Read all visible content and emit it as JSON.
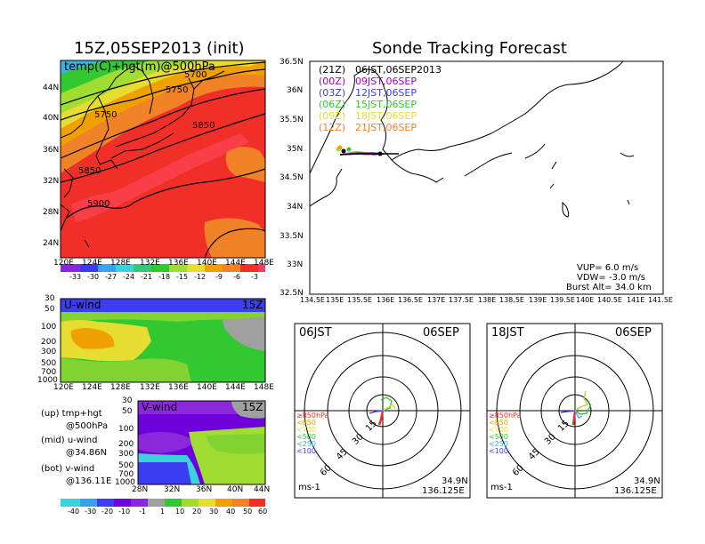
{
  "page": {
    "left_title": "15Z,05SEP2013 (init)",
    "right_title": "Sonde Tracking Forecast"
  },
  "colors": {
    "red": "#f03028",
    "orange": "#f08228",
    "yellow_orange": "#f0a000",
    "yellow": "#e6dc32",
    "yellow_green": "#a0dc32",
    "green": "#32c832",
    "lime": "#82d232",
    "magenta": "#a000c8",
    "purple": "#6e00dc",
    "blue": "#3c3cf0",
    "grey": "#a0a0a0"
  },
  "panels": {
    "map500": {
      "label": "temp(C)+hgt(m)@500hPa",
      "lat_ticks": [
        "44N",
        "40N",
        "36N",
        "32N",
        "28N",
        "24N"
      ],
      "lon_ticks": [
        "120E",
        "124E",
        "128E",
        "132E",
        "136E",
        "140E",
        "144E",
        "148E"
      ],
      "contour_labels": [
        "5700",
        "5750",
        "5750",
        "5850",
        "5850",
        "5900"
      ],
      "colorbar_labels": [
        "-33",
        "-30",
        "-27",
        "-24",
        "-21",
        "-18",
        "-15",
        "-12",
        "-9",
        "-6",
        "-3"
      ]
    },
    "uwind": {
      "label": "U-wind",
      "time": "15Z",
      "y_ticks": [
        "30",
        "50",
        "100",
        "200",
        "300",
        "500",
        "700",
        "1000"
      ],
      "x_ticks": [
        "120E",
        "124E",
        "128E",
        "132E",
        "136E",
        "140E",
        "144E",
        "148E"
      ]
    },
    "vwind": {
      "label": "V-wind",
      "time": "15Z",
      "y_ticks": [
        "30",
        "50",
        "100",
        "200",
        "300",
        "500",
        "700",
        "1000"
      ],
      "x_ticks": [
        "28N",
        "32N",
        "36N",
        "40N",
        "44N"
      ],
      "colorbar_labels": [
        "-40",
        "-30",
        "-20",
        "-10",
        "-1",
        "1",
        "10",
        "20",
        "30",
        "40",
        "50",
        "60"
      ]
    },
    "legend_notes": {
      "up": "(up) tmp+hgt",
      "up2": "@500hPa",
      "mid": "(mid) u-wind",
      "mid2": "@34.86N",
      "bot": "(bot) v-wind",
      "bot2": "@136.11E"
    },
    "track": {
      "lat_ticks": [
        "36.5N",
        "36N",
        "35.5N",
        "35N",
        "34.5N",
        "34N",
        "33.5N",
        "33N",
        "32.5N"
      ],
      "lon_ticks": [
        "134.5E",
        "135E",
        "135.5E",
        "136E",
        "136.5E",
        "137E",
        "137.5E",
        "138E",
        "138.5E",
        "139E",
        "139.5E",
        "140E",
        "140.5E",
        "141E",
        "141.5E"
      ],
      "launches": [
        {
          "utc": "(21Z)",
          "jst": "06JST,06SEP2013",
          "color": "#000000"
        },
        {
          "utc": "(00Z)",
          "jst": "09JST,06SEP",
          "color": "#a000c8"
        },
        {
          "utc": "(03Z)",
          "jst": "12JST,06SEP",
          "color": "#3c3cf0"
        },
        {
          "utc": "(06Z)",
          "jst": "15JST,06SEP",
          "color": "#32c832"
        },
        {
          "utc": "(09Z)",
          "jst": "18JST,06SEP",
          "color": "#e6dc32"
        },
        {
          "utc": "(12Z)",
          "jst": "21JST,06SEP",
          "color": "#f08228"
        }
      ],
      "vup": "VUP= 6.0 m/s",
      "vdw": "VDW= -3.0 m/s",
      "burst": "Burst Alt= 34.0 km"
    },
    "polar_left": {
      "time": "06JST",
      "date": "06SEP",
      "ring_labels": [
        "15",
        "30",
        "45",
        "60"
      ],
      "levels": [
        "≥850hPa",
        "<850",
        "<700",
        "<500",
        "<250",
        "<100"
      ],
      "level_colors": [
        "#f03028",
        "#f0a000",
        "#e6dc32",
        "#32c832",
        "#3cb4f0",
        "#3c3cf0"
      ],
      "unit": "ms-1",
      "lat": "34.9N",
      "lon": "136.125E"
    },
    "polar_right": {
      "time": "18JST",
      "date": "06SEP",
      "ring_labels": [
        "15",
        "30",
        "45",
        "60"
      ],
      "levels": [
        "≥850hPa",
        "<850",
        "<700",
        "<500",
        "<250",
        "<100"
      ],
      "level_colors": [
        "#f03028",
        "#f0a000",
        "#e6dc32",
        "#32c832",
        "#3cb4f0",
        "#3c3cf0"
      ],
      "unit": "ms-1",
      "lat": "34.9N",
      "lon": "136.125E"
    }
  }
}
